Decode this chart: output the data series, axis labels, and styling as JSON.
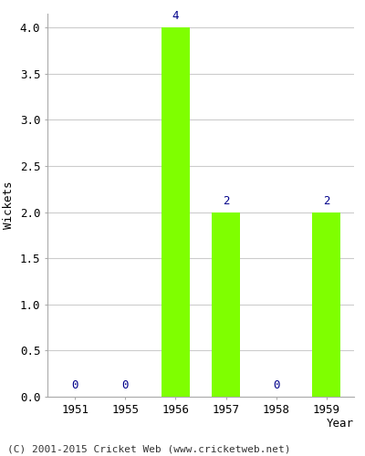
{
  "years": [
    1951,
    1955,
    1956,
    1957,
    1958,
    1959
  ],
  "wickets": [
    0,
    0,
    4,
    2,
    0,
    2
  ],
  "bar_color": "#7fff00",
  "bar_edge_color": "#7fff00",
  "label_color": "#00008b",
  "xlabel": "Year",
  "ylabel": "Wickets",
  "ylim": [
    0,
    4.15
  ],
  "yticks": [
    0.0,
    0.5,
    1.0,
    1.5,
    2.0,
    2.5,
    3.0,
    3.5,
    4.0
  ],
  "footnote": "(C) 2001-2015 Cricket Web (www.cricketweb.net)",
  "background_color": "#ffffff",
  "grid_color": "#cccccc",
  "label_fontsize": 9,
  "axis_label_fontsize": 9,
  "footnote_fontsize": 8,
  "bar_width": 0.55
}
